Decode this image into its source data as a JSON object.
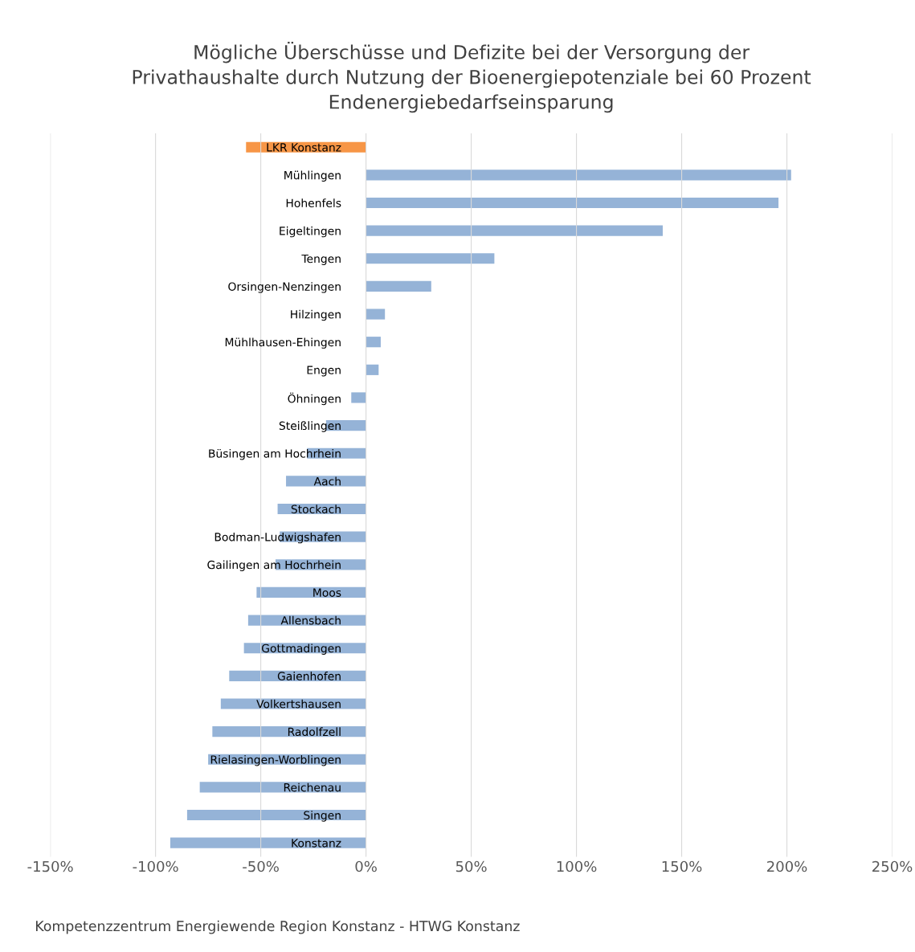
{
  "chart_data": {
    "type": "bar",
    "orientation": "horizontal",
    "title": "Mögliche Überschüsse und Defizite bei der Versorgung der\nPrivathaushalte durch Nutzung der Bioenergiepotenziale bei 60 Prozent\nEndenergiebedarfseinsparung",
    "categories": [
      "LKR Konstanz",
      "Mühlingen",
      "Hohenfels",
      "Eigeltingen",
      "Tengen",
      "Orsingen-Nenzingen",
      "Hilzingen",
      "Mühlhausen-Ehingen",
      "Engen",
      "Öhningen",
      "Steißlingen",
      "Büsingen am Hochrhein",
      "Aach",
      "Stockach",
      "Bodman-Ludwigshafen",
      "Gailingen am Hochrhein",
      "Moos",
      "Allensbach",
      "Gottmadingen",
      "Gaienhofen",
      "Volkertshausen",
      "Radolfzell",
      "Rielasingen-Worblingen",
      "Reichenau",
      "Singen",
      "Konstanz"
    ],
    "values": [
      -57,
      202,
      196,
      141,
      61,
      31,
      9,
      7,
      6,
      -7,
      -19,
      -28,
      -38,
      -42,
      -41,
      -43,
      -52,
      -56,
      -58,
      -65,
      -69,
      -73,
      -75,
      -79,
      -85,
      -93
    ],
    "colors": [
      "#f79646",
      "#95b3d7",
      "#95b3d7",
      "#95b3d7",
      "#95b3d7",
      "#95b3d7",
      "#95b3d7",
      "#95b3d7",
      "#95b3d7",
      "#95b3d7",
      "#95b3d7",
      "#95b3d7",
      "#95b3d7",
      "#95b3d7",
      "#95b3d7",
      "#95b3d7",
      "#95b3d7",
      "#95b3d7",
      "#95b3d7",
      "#95b3d7",
      "#95b3d7",
      "#95b3d7",
      "#95b3d7",
      "#95b3d7",
      "#95b3d7",
      "#95b3d7"
    ],
    "xlim": [
      -150,
      250
    ],
    "xticks": [
      {
        "value": -150,
        "label": "-150%"
      },
      {
        "value": -100,
        "label": "-100%"
      },
      {
        "value": -50,
        "label": "-50%"
      },
      {
        "value": 0,
        "label": "0%"
      },
      {
        "value": 50,
        "label": "50%"
      },
      {
        "value": 100,
        "label": "100%"
      },
      {
        "value": 150,
        "label": "150%"
      },
      {
        "value": 200,
        "label": "200%"
      },
      {
        "value": 250,
        "label": "250%"
      }
    ],
    "grid": "x",
    "annotations": [
      "Kompetenzzentrum Energiewende Region Konstanz - HTWG Konstanz"
    ]
  }
}
